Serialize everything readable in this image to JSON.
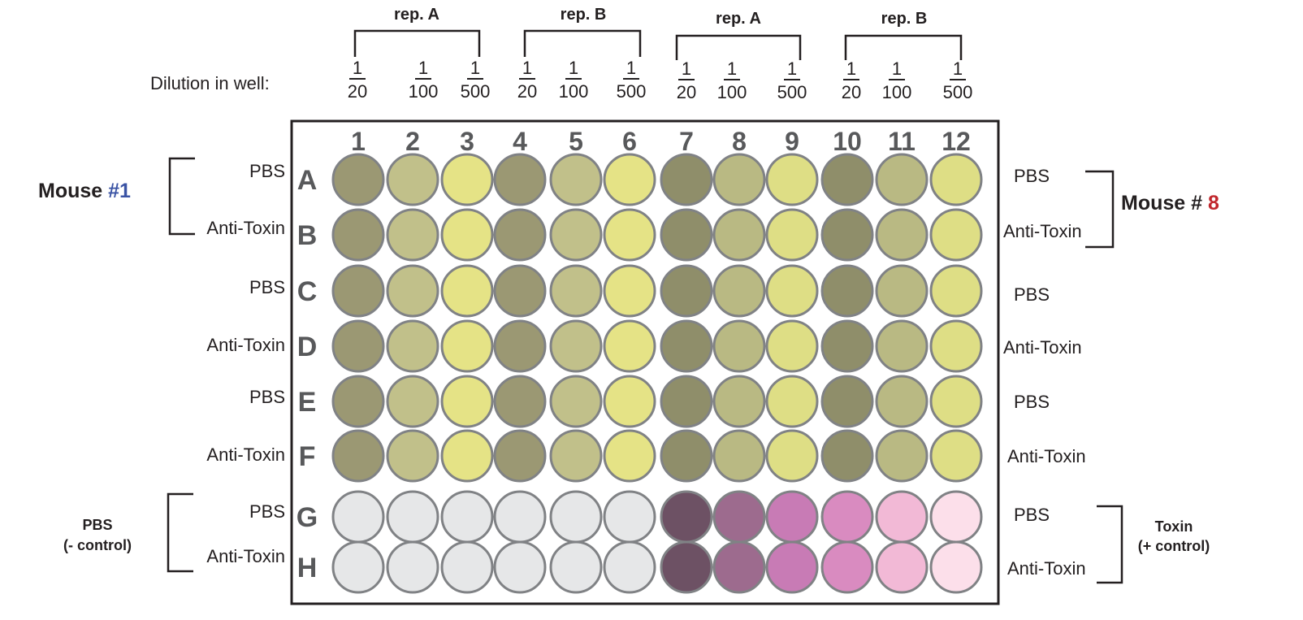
{
  "dilution_label": "Dilution in well:",
  "rep_groups": [
    {
      "label": "rep. A",
      "fractions": [
        {
          "num": "1",
          "den": "20"
        },
        {
          "num": "1",
          "den": "100"
        },
        {
          "num": "1",
          "den": "500"
        }
      ]
    },
    {
      "label": "rep. B",
      "fractions": [
        {
          "num": "1",
          "den": "20"
        },
        {
          "num": "1",
          "den": "100"
        },
        {
          "num": "1",
          "den": "500"
        }
      ]
    },
    {
      "label": "rep. A",
      "fractions": [
        {
          "num": "1",
          "den": "20"
        },
        {
          "num": "1",
          "den": "100"
        },
        {
          "num": "1",
          "den": "500"
        }
      ]
    },
    {
      "label": "rep. B",
      "fractions": [
        {
          "num": "1",
          "den": "20"
        },
        {
          "num": "1",
          "den": "100"
        },
        {
          "num": "1",
          "den": "500"
        }
      ]
    }
  ],
  "columns": [
    "1",
    "2",
    "3",
    "4",
    "5",
    "6",
    "7",
    "8",
    "9",
    "10",
    "11",
    "12"
  ],
  "rows": [
    {
      "letter": "A",
      "left_label": "PBS",
      "right_label": "PBS",
      "type": "yellow"
    },
    {
      "letter": "B",
      "left_label": "Anti-Toxin",
      "right_label": "Anti-Toxin",
      "type": "yellow"
    },
    {
      "letter": "C",
      "left_label": "PBS",
      "right_label": "PBS",
      "type": "yellow"
    },
    {
      "letter": "D",
      "left_label": "Anti-Toxin",
      "right_label": "Anti-Toxin",
      "type": "yellow"
    },
    {
      "letter": "E",
      "left_label": "PBS",
      "right_label": "PBS",
      "type": "yellow"
    },
    {
      "letter": "F",
      "left_label": "Anti-Toxin",
      "right_label": "Anti-Toxin",
      "type": "yellow"
    },
    {
      "letter": "G",
      "left_label": "PBS",
      "right_label": "PBS",
      "type": "control"
    },
    {
      "letter": "H",
      "left_label": "Anti-Toxin",
      "right_label": "Anti-Toxin",
      "type": "control"
    }
  ],
  "mouse_left": {
    "prefix": "Mouse ",
    "number": "#1",
    "color": "#3a53a4"
  },
  "mouse_right": {
    "prefix": "Mouse # ",
    "number": "8",
    "color": "#c1272d"
  },
  "control_left": {
    "line1": "PBS",
    "line2": "(- control)"
  },
  "control_right": {
    "line1": "Toxin",
    "line2": "(+ control)"
  },
  "colors": {
    "yellow_wells": [
      "#9b9873",
      "#c1c08a",
      "#e5e386",
      "#9b9873",
      "#c1c08a",
      "#e5e386",
      "#8f8e6a",
      "#b9b983",
      "#dede85",
      "#8f8e6a",
      "#b9b983",
      "#dede85"
    ],
    "control_wells": [
      "#e6e7e8",
      "#e6e7e8",
      "#e6e7e8",
      "#e6e7e8",
      "#e6e7e8",
      "#e6e7e8",
      "#6d5164",
      "#9d6b8e",
      "#c87bb5",
      "#d98bc0",
      "#f2b9d6",
      "#fcdfea"
    ]
  }
}
